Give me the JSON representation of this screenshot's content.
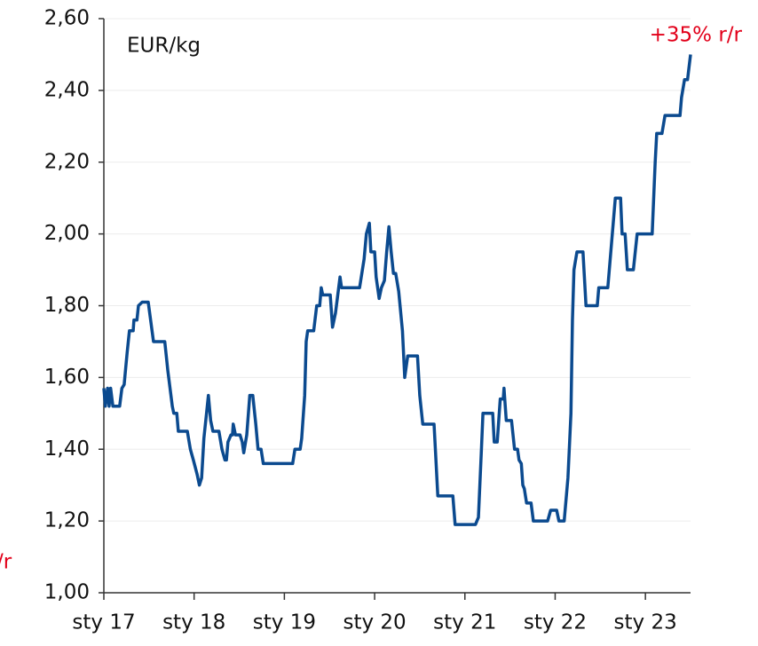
{
  "chart_data": {
    "type": "line",
    "axis_label": "EUR/kg",
    "annotations": [
      "+35% r/r",
      "/r"
    ],
    "xlim": [
      0,
      78
    ],
    "xticks": [
      {
        "value": 0,
        "label": "sty 17"
      },
      {
        "value": 12,
        "label": "sty 18"
      },
      {
        "value": 24,
        "label": "sty 19"
      },
      {
        "value": 36,
        "label": "sty 20"
      },
      {
        "value": 48,
        "label": "sty 21"
      },
      {
        "value": 60,
        "label": "sty 22"
      },
      {
        "value": 72,
        "label": "sty 23"
      }
    ],
    "ylim": [
      1.0,
      2.6
    ],
    "yticks": [
      {
        "value": 1.0,
        "label": "1,00"
      },
      {
        "value": 1.2,
        "label": "1,20"
      },
      {
        "value": 1.4,
        "label": "1,40"
      },
      {
        "value": 1.6,
        "label": "1,60"
      },
      {
        "value": 1.8,
        "label": "1,80"
      },
      {
        "value": 2.0,
        "label": "2,00"
      },
      {
        "value": 2.2,
        "label": "2,20"
      },
      {
        "value": 2.4,
        "label": "2,40"
      },
      {
        "value": 2.6,
        "label": "2,60"
      }
    ],
    "grid": true,
    "annotation_color": "#e2001a",
    "x": [
      0,
      0.2,
      0.5,
      0.7,
      0.9,
      1.2,
      2.1,
      2.4,
      2.7,
      3.1,
      3.4,
      3.9,
      4.0,
      4.4,
      4.6,
      5.1,
      5.9,
      6.6,
      8.1,
      8.5,
      9.1,
      9.3,
      9.7,
      9.9,
      11.1,
      11.5,
      11.9,
      12.4,
      12.7,
      13.0,
      13.3,
      13.9,
      14.2,
      14.5,
      15.3,
      15.7,
      16.1,
      16.3,
      16.5,
      16.9,
      17.1,
      17.2,
      17.5,
      18.1,
      18.4,
      18.6,
      19.0,
      19.4,
      19.8,
      20.2,
      20.5,
      20.9,
      21.2,
      25.1,
      25.4,
      26.1,
      26.3,
      26.7,
      26.9,
      27.1,
      27.9,
      28.3,
      28.7,
      28.9,
      29.1,
      30.1,
      30.4,
      30.8,
      31.4,
      31.6,
      34.0,
      34.6,
      34.9,
      35.3,
      35.5,
      36.0,
      36.2,
      36.6,
      36.9,
      37.3,
      37.6,
      37.9,
      38.2,
      38.5,
      38.8,
      39.2,
      39.7,
      40.0,
      40.4,
      41.7,
      42.0,
      42.4,
      43.9,
      44.4,
      46.4,
      46.7,
      49.4,
      49.8,
      50.2,
      50.4,
      51.7,
      51.9,
      52.3,
      52.5,
      52.7,
      53.1,
      53.2,
      53.5,
      54.2,
      54.6,
      55.0,
      55.2,
      55.5,
      55.7,
      55.9,
      56.2,
      56.8,
      57.1,
      59.0,
      59.4,
      60.2,
      60.5,
      61.2,
      61.7,
      62.1,
      62.3,
      62.5,
      62.9,
      63.7,
      64.1,
      65.6,
      65.8,
      67.0,
      67.6,
      68.0,
      68.7,
      68.9,
      69.3,
      69.6,
      70.4,
      70.9,
      72.9,
      73.3,
      73.5,
      74.2,
      74.6,
      76.6,
      76.8,
      77.2,
      77.6,
      78.0
    ],
    "series": [
      {
        "color": "#0b4a8f",
        "values": [
          1.57,
          1.52,
          1.57,
          1.52,
          1.57,
          1.52,
          1.52,
          1.57,
          1.58,
          1.67,
          1.73,
          1.73,
          1.76,
          1.76,
          1.8,
          1.81,
          1.81,
          1.7,
          1.7,
          1.62,
          1.52,
          1.5,
          1.5,
          1.45,
          1.45,
          1.4,
          1.37,
          1.33,
          1.3,
          1.32,
          1.43,
          1.55,
          1.48,
          1.45,
          1.45,
          1.4,
          1.37,
          1.37,
          1.42,
          1.44,
          1.44,
          1.47,
          1.44,
          1.44,
          1.42,
          1.39,
          1.44,
          1.55,
          1.55,
          1.47,
          1.4,
          1.4,
          1.36,
          1.36,
          1.4,
          1.4,
          1.43,
          1.55,
          1.7,
          1.73,
          1.73,
          1.8,
          1.8,
          1.85,
          1.83,
          1.83,
          1.74,
          1.78,
          1.88,
          1.85,
          1.85,
          1.93,
          2.0,
          2.03,
          1.95,
          1.95,
          1.88,
          1.82,
          1.85,
          1.87,
          1.95,
          2.02,
          1.95,
          1.89,
          1.89,
          1.84,
          1.73,
          1.6,
          1.66,
          1.66,
          1.55,
          1.47,
          1.47,
          1.27,
          1.27,
          1.19,
          1.19,
          1.21,
          1.4,
          1.5,
          1.5,
          1.42,
          1.42,
          1.48,
          1.54,
          1.54,
          1.57,
          1.48,
          1.48,
          1.4,
          1.4,
          1.37,
          1.36,
          1.3,
          1.29,
          1.25,
          1.25,
          1.2,
          1.2,
          1.23,
          1.23,
          1.2,
          1.2,
          1.32,
          1.5,
          1.76,
          1.9,
          1.95,
          1.95,
          1.8,
          1.8,
          1.85,
          1.85,
          2.0,
          2.1,
          2.1,
          2.0,
          2.0,
          1.9,
          1.9,
          2.0,
          2.0,
          2.2,
          2.28,
          2.28,
          2.33,
          2.33,
          2.38,
          2.43,
          2.43,
          2.5
        ]
      }
    ]
  }
}
